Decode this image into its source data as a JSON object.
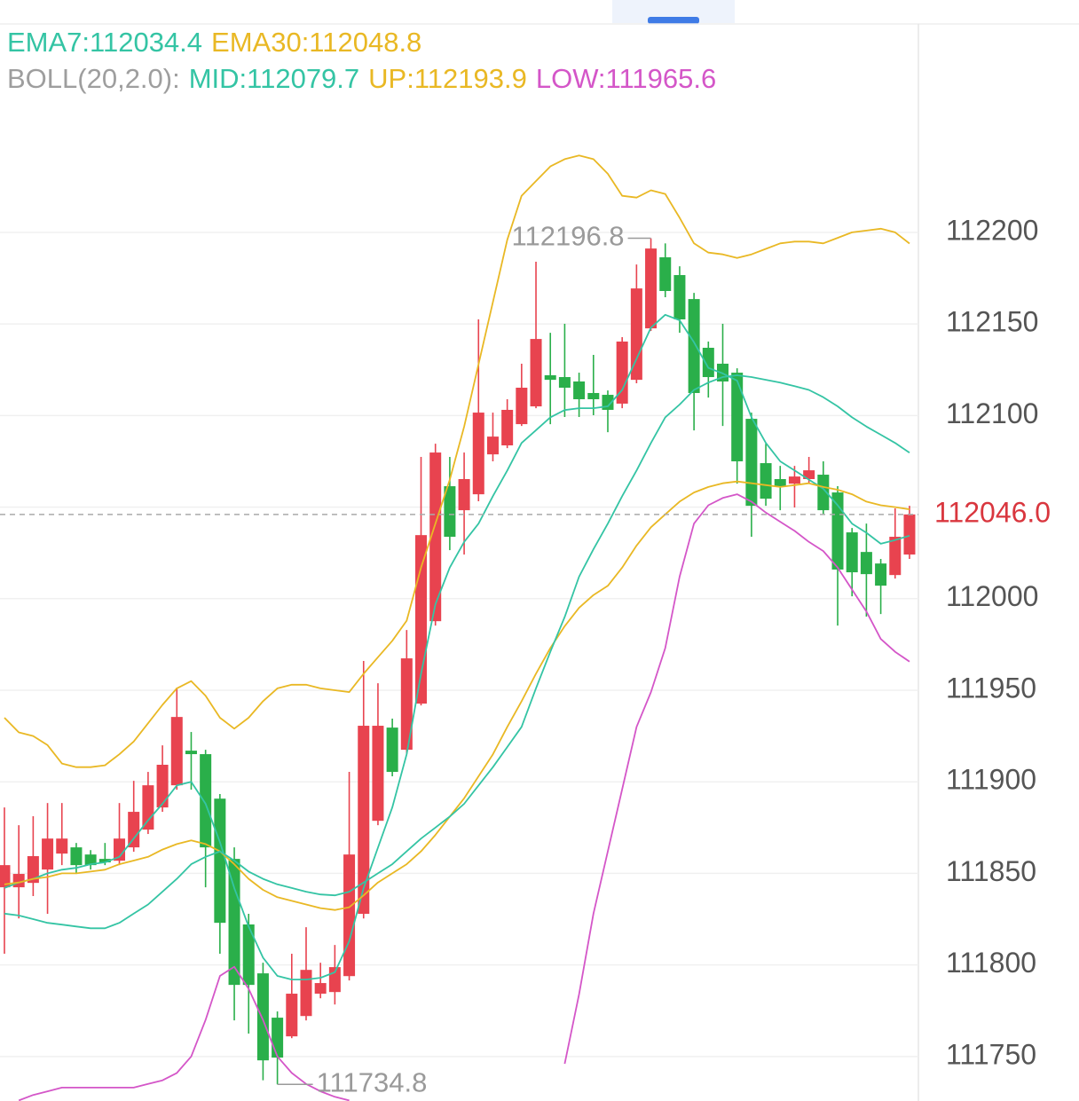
{
  "chart_data": {
    "type": "candlestick",
    "up_color": "#e8434f",
    "down_color": "#2aaf4a",
    "ylim": [
      111725.7,
      112326.9
    ],
    "yticks": [
      111750,
      111800,
      111850,
      111900,
      111950,
      112000,
      112050,
      112100,
      112150,
      112200
    ],
    "grid": true,
    "boll_label": "BOLL(20,2.0):",
    "boll_label_color": "#9e9e9e",
    "open": [
      111842.4,
      111842.4,
      111844.8,
      111852.1,
      111860.8,
      111864.2,
      111860.3,
      111857.9,
      111856.9,
      111864.2,
      111873.9,
      111886.0,
      111898.1,
      111917.0,
      111915.1,
      111890.8,
      111857.9,
      111822.1,
      111795.4,
      111771.2,
      111761.0,
      111772.1,
      111784.3,
      111785.2,
      111793.9,
      111827.9,
      111878.7,
      111929.6,
      111917.5,
      111942.7,
      111987.7,
      112061.4,
      112048.3,
      112057.0,
      112078.8,
      112083.7,
      112095.3,
      112105.0,
      112122.0,
      112121.0,
      112118.6,
      112112.3,
      112111.3,
      112106.5,
      112119.5,
      112147.6,
      112186.4,
      112176.7,
      112163.6,
      112137.0,
      112128.3,
      112123.4,
      112098.2,
      112074.0,
      112065.3,
      112062.8,
      112065.3,
      112067.7,
      112058.0,
      112036.2,
      112025.5,
      112019.2,
      112012.9,
      112024.1
    ],
    "high": [
      111886.0,
      111876.3,
      111881.2,
      111888.4,
      111888.4,
      111866.6,
      111862.7,
      111866.6,
      111888.4,
      111900.5,
      111905.4,
      111919.9,
      111951.4,
      111927.2,
      111917.5,
      111893.3,
      111864.2,
      111827.9,
      111801.2,
      111774.6,
      111806.1,
      111820.6,
      111801.2,
      111810.9,
      111905.4,
      111966.0,
      111953.8,
      111934.5,
      111982.9,
      112077.4,
      112084.6,
      112077.4,
      112079.8,
      112152.5,
      112101.6,
      112108.9,
      112128.3,
      112184.0,
      112145.2,
      112150.1,
      112123.4,
      112133.1,
      112113.7,
      112142.8,
      112182.5,
      112196.8,
      112194.0,
      112181.5,
      112167.0,
      112140.4,
      112150.1,
      112125.8,
      112101.6,
      112084.6,
      112072.5,
      112072.5,
      112077.4,
      112075.0,
      112061.4,
      112038.6,
      112041.0,
      112021.7,
      112049.3,
      112050.7
    ],
    "low": [
      111806.1,
      111825.4,
      111837.6,
      111827.9,
      111854.5,
      111849.7,
      111852.1,
      111854.5,
      111854.5,
      111861.8,
      111871.5,
      111883.6,
      111895.7,
      111895.7,
      111842.4,
      111806.1,
      111769.7,
      111762.5,
      111737.0,
      111734.8,
      111760.0,
      111769.7,
      111781.8,
      111778.4,
      111791.5,
      111825.4,
      111876.3,
      111903.0,
      111915.1,
      111941.7,
      111985.3,
      112026.5,
      112024.1,
      112053.2,
      112075.0,
      112082.2,
      112094.3,
      112104.0,
      112095.3,
      112099.2,
      112099.2,
      112100.2,
      112090.9,
      112104.0,
      112117.6,
      112146.2,
      112164.6,
      112145.2,
      112091.9,
      112109.8,
      112094.3,
      112062.8,
      112033.8,
      112050.7,
      112048.3,
      112049.8,
      112062.8,
      112045.9,
      111985.3,
      112001.3,
      111990.2,
      111991.6,
      112011.0,
      112021.7
    ],
    "close": [
      111854.5,
      111849.7,
      111859.4,
      111869.0,
      111869.0,
      111854.5,
      111854.5,
      111856.0,
      111869.0,
      111883.6,
      111898.1,
      111909.3,
      111935.4,
      111915.1,
      111864.2,
      111823.0,
      111789.1,
      111789.1,
      111747.9,
      111749.4,
      111784.3,
      111797.3,
      111790.1,
      111798.8,
      111860.3,
      111930.6,
      111930.6,
      111905.4,
      111967.4,
      112034.7,
      112079.8,
      112033.8,
      112065.3,
      112101.6,
      112088.5,
      112103.1,
      112115.2,
      112141.8,
      112119.5,
      112115.2,
      112108.9,
      112108.9,
      112103.1,
      112140.4,
      112169.4,
      112191.2,
      112168.0,
      112152.5,
      112112.3,
      112121.0,
      112118.6,
      112075.0,
      112050.7,
      112054.6,
      112061.4,
      112066.7,
      112070.1,
      112048.3,
      112015.9,
      112014.4,
      112013.4,
      112007.1,
      112033.8,
      112046.0
    ],
    "series": [
      {
        "name": "EMA7:112034.4",
        "color": "#34c4a4",
        "values": [
          111842,
          111845,
          111847,
          111850,
          111852,
          111853,
          111855,
          111856,
          111859,
          111869,
          111879,
          111888,
          111898,
          111900,
          111888,
          111867,
          111842,
          111821,
          111804,
          111794,
          111792,
          111792,
          111793,
          111796,
          111813,
          111842,
          111864,
          111886,
          111915,
          111959,
          111997,
          112017,
          112031,
          112041,
          112056,
          112070,
          112085,
          112092,
          112099,
          112103,
          112104,
          112104,
          112105,
          112114,
          112131,
          112148,
          112155,
          112152,
          112140,
          112126,
          112123,
          112119,
          112099,
          112085,
          112075,
          112070,
          112065,
          112060,
          112051,
          112041,
          112036,
          112030,
          112032,
          112034.4
        ]
      },
      {
        "name": "EMA30:112048.8",
        "color": "#e9b824",
        "values": [
          111844,
          111845,
          111847,
          111848,
          111850,
          111850,
          111851,
          111852,
          111855,
          111857,
          111859,
          111863,
          111866,
          111868,
          111866,
          111862,
          111855,
          111847,
          111841,
          111837,
          111835,
          111833,
          111831,
          111830,
          111831.5,
          111838,
          111845,
          111850,
          111855,
          111862,
          111871,
          111881,
          111891,
          111903,
          111915,
          111930,
          111944,
          111959,
          111973,
          111985,
          111995,
          112002,
          112007,
          112017,
          112029,
          112039,
          112046,
          112053,
          112058,
          112061,
          112063,
          112064,
          112063,
          112062,
          112061,
          112062,
          112063,
          112061,
          112059.5,
          112057,
          112053,
          112051,
          112050,
          112048.8
        ]
      },
      {
        "name": "MID:112079.7",
        "color": "#34c4a4",
        "values": [
          111828,
          111827,
          111825,
          111823,
          111822,
          111821,
          111820,
          111820,
          111823,
          111828,
          111833,
          111840,
          111847,
          111855,
          111859,
          111862,
          111857,
          111851,
          111847,
          111844,
          111842,
          111840,
          111838.5,
          111838,
          111840,
          111845,
          111850,
          111855,
          111862,
          111869,
          111875,
          111881,
          111888,
          111898,
          111908,
          111919,
          111930,
          111951,
          111971,
          111990,
          112012,
          112027,
          112041,
          112056,
          112070,
          112085,
          112099,
          112106,
          112114,
          112118,
          112121,
          112122,
          112121,
          112119.5,
          112118,
          112116,
          112114,
          112110,
          112105,
          112099,
          112094,
          112089.5,
          112085,
          112079.7
        ]
      },
      {
        "name": "UP:112193.9",
        "color": "#e9b824",
        "values": [
          111935,
          111927,
          111925,
          111920,
          111910,
          111908,
          111908,
          111909,
          111915,
          111922,
          111932,
          111942,
          111951,
          111955,
          111947,
          111935,
          111929,
          111935,
          111944,
          111951,
          111953,
          111953,
          111951,
          111950,
          111949,
          111959,
          111968,
          111977,
          111988,
          112017,
          112041,
          112065,
          112094,
          112128,
          112162,
          112196,
          112220,
          112228,
          112236,
          112240,
          112242,
          112240,
          112232,
          112220,
          112219,
          112223,
          112221,
          112208,
          112194,
          112189,
          112188,
          112186,
          112188,
          112191,
          112194,
          112195,
          112195,
          112194,
          112197,
          112200,
          112201,
          112202,
          112200,
          112193.9
        ]
      },
      {
        "name": "LOW:111965.6",
        "color": "#d456c8",
        "values": [
          null,
          111726,
          111729,
          111731,
          111733,
          111733,
          111733,
          111733,
          111733,
          111733,
          111735,
          111737,
          111741,
          111750,
          111770,
          111794,
          111799,
          111787,
          111770,
          111750,
          111741,
          111735,
          111731,
          111728,
          111726,
          null,
          null,
          null,
          null,
          null,
          null,
          null,
          null,
          null,
          null,
          null,
          null,
          null,
          null,
          111746,
          111784,
          111828,
          111862,
          111896,
          111930,
          111949,
          111973,
          112012,
          112041,
          112051,
          112055,
          112057,
          112053,
          112047,
          112042,
          112037,
          112031,
          112026,
          112017,
          112005,
          111993,
          111978,
          111971,
          111965.6
        ]
      }
    ],
    "max_annotation": 112196.8,
    "min_annotation": 111734.8,
    "last_price": {
      "value": 112046,
      "label": "112046.0"
    },
    "last_price_color": "#d9363e"
  }
}
